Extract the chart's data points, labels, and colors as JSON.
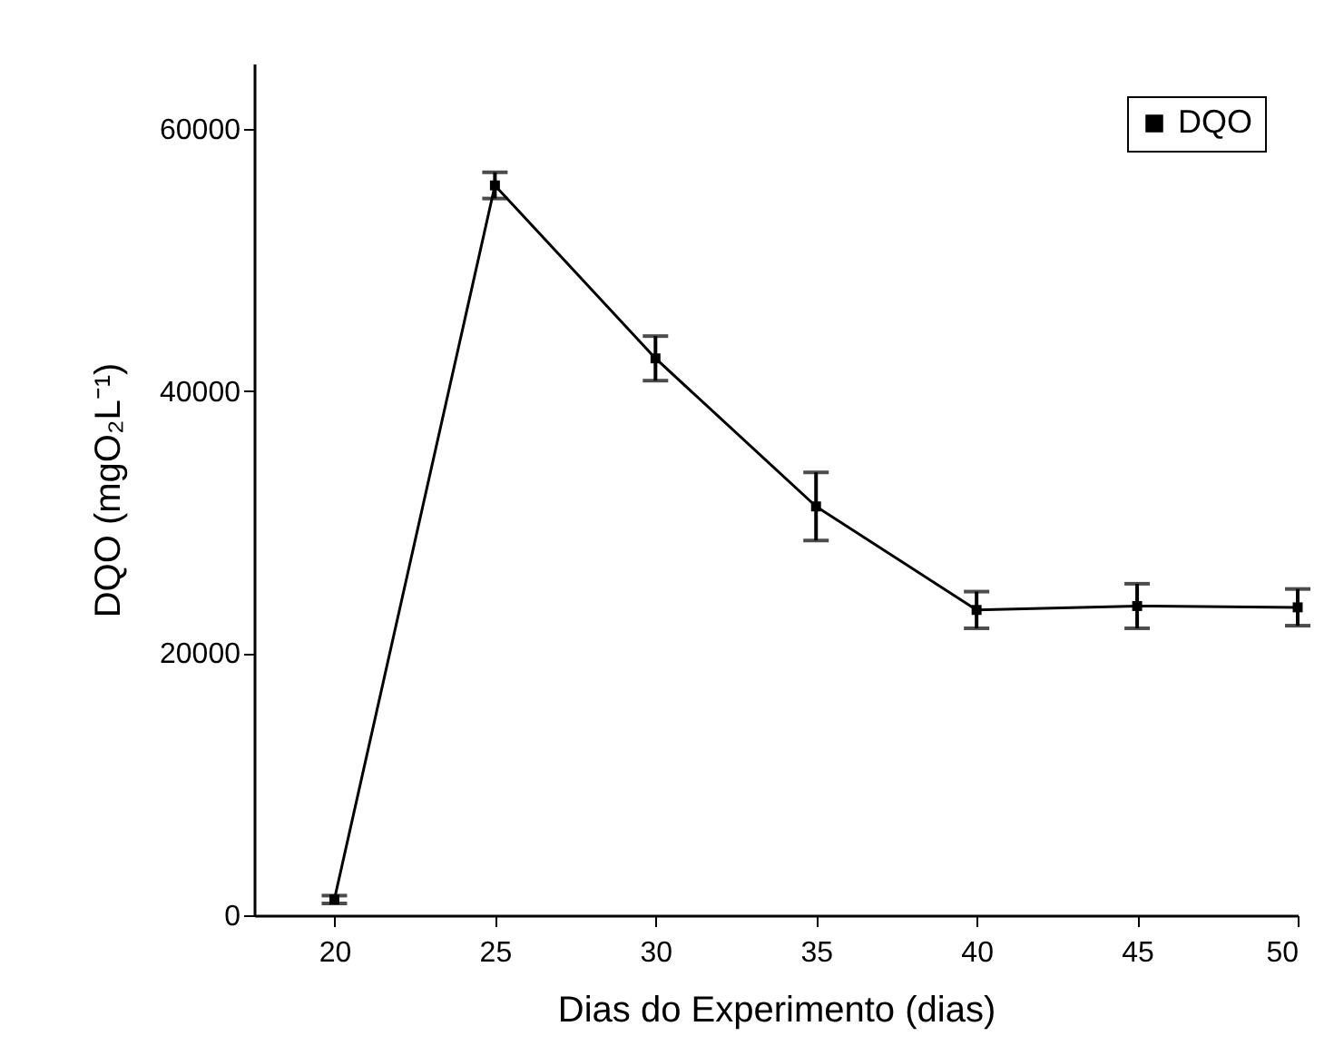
{
  "chart_data": {
    "type": "line",
    "xlabel": "Dias do Experimento (dias)",
    "ylabel": "DQO (mgO₂L⁻¹)",
    "x": [
      20,
      25,
      30,
      35,
      40,
      45,
      50
    ],
    "series": [
      {
        "name": "DQO",
        "color": "#000000",
        "values": [
          1200,
          55700,
          42500,
          31200,
          23300,
          23600,
          23500
        ],
        "errors": [
          300,
          1000,
          1700,
          2600,
          1400,
          1700,
          1400
        ]
      }
    ],
    "xlim": [
      17.5,
      50
    ],
    "xticks": [
      20,
      25,
      30,
      35,
      40,
      45,
      50
    ],
    "ylim": [
      0,
      65000
    ],
    "yticks": [
      0,
      20000,
      40000,
      60000
    ],
    "marker": "square",
    "line_style": "solid",
    "legend": "top right",
    "grid": false
  }
}
